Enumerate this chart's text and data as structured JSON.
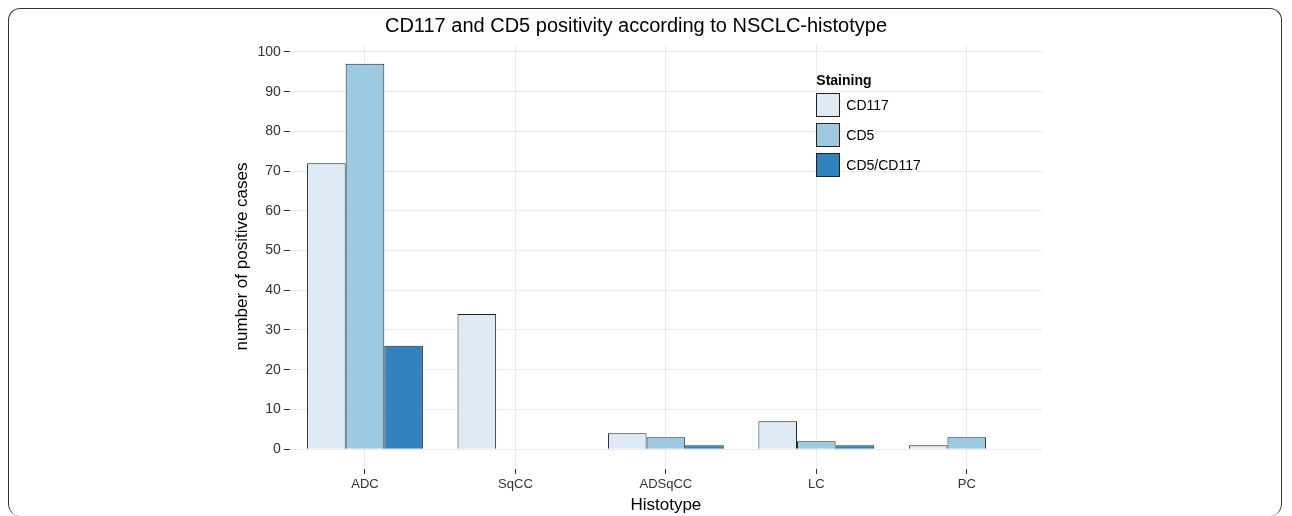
{
  "chart_data": {
    "type": "bar",
    "title": "CD117 and CD5 positivity according to NSCLC-histotype",
    "xlabel": "Histotype",
    "ylabel": "number of positive cases",
    "legend_title": "Staining",
    "categories": [
      "ADC",
      "SqCC",
      "ADSqCC",
      "LC",
      "PC"
    ],
    "series": [
      {
        "name": "CD117",
        "color": "#deebf7",
        "values": [
          72,
          34,
          4,
          7,
          1
        ]
      },
      {
        "name": "CD5",
        "color": "#9ecae1",
        "values": [
          97,
          null,
          3,
          2,
          3
        ]
      },
      {
        "name": "CD5/CD117",
        "color": "#3182bd",
        "values": [
          26,
          null,
          1,
          1,
          null
        ]
      }
    ],
    "ylim": [
      -5,
      102
    ],
    "yticks": [
      0,
      10,
      20,
      30,
      40,
      50,
      60,
      70,
      80,
      90,
      100
    ],
    "grid": true,
    "legend": "top right"
  }
}
